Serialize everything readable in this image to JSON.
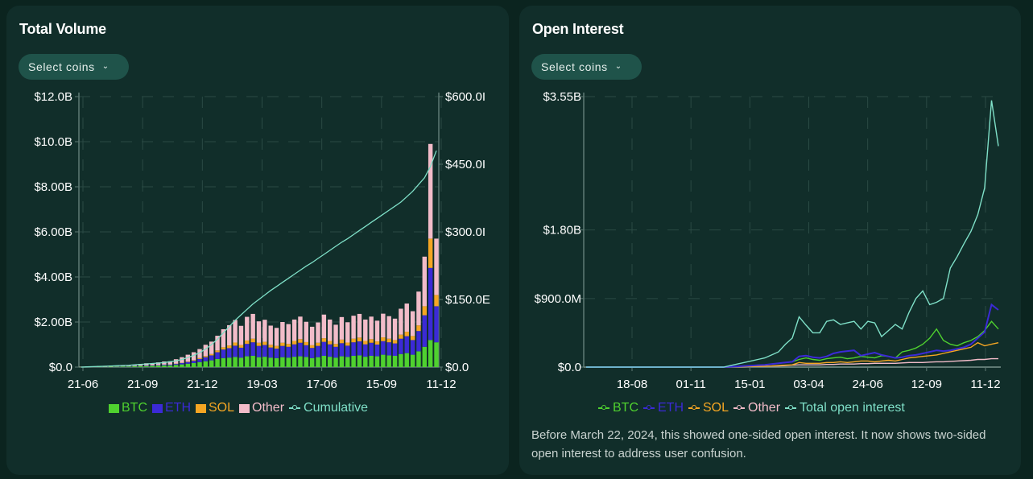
{
  "colors": {
    "btc": "#4fd12f",
    "eth": "#3b2ad6",
    "sol": "#f5a623",
    "other": "#f2bcc9",
    "cumulative": "#7fe0c8",
    "total_oi": "#7fe0c8",
    "grid": "#2a4a44",
    "axis": "#5f7a74"
  },
  "volume_panel": {
    "title": "Total Volume",
    "select_label": "Select coins",
    "select_icon": "chevron-down-icon",
    "legend": [
      {
        "key": "btc",
        "label": "BTC",
        "marker": "square"
      },
      {
        "key": "eth",
        "label": "ETH",
        "marker": "square"
      },
      {
        "key": "sol",
        "label": "SOL",
        "marker": "square"
      },
      {
        "key": "other",
        "label": "Other",
        "marker": "square"
      },
      {
        "key": "cumulative",
        "label": "Cumulative",
        "marker": "line"
      }
    ]
  },
  "oi_panel": {
    "title": "Open Interest",
    "select_label": "Select coins",
    "select_icon": "chevron-down-icon",
    "legend": [
      {
        "key": "btc",
        "label": "BTC",
        "marker": "line"
      },
      {
        "key": "eth",
        "label": "ETH",
        "marker": "line"
      },
      {
        "key": "sol",
        "label": "SOL",
        "marker": "line"
      },
      {
        "key": "other",
        "label": "Other",
        "marker": "line"
      },
      {
        "key": "total_oi",
        "label": "Total open interest",
        "marker": "line"
      }
    ],
    "note": "Before March 22, 2024, this showed one-sided open interest. It now shows two-sided open interest to address user confusion."
  },
  "chart_data": [
    {
      "type": "bar",
      "stacked": true,
      "title": "Total Volume",
      "x_tick_labels": [
        "21-06",
        "21-09",
        "21-12",
        "19-03",
        "17-06",
        "15-09",
        "11-12"
      ],
      "y_left_tick_labels": [
        "$0.0",
        "$2.00B",
        "$4.00B",
        "$6.00B",
        "$8.00B",
        "$10.0B",
        "$12.0B"
      ],
      "y_left_ticks": [
        0,
        2,
        4,
        6,
        8,
        10,
        12
      ],
      "ylim_left": [
        0,
        12
      ],
      "y_left_unit": "billions USD (daily volume)",
      "y_right_tick_labels": [
        "$0.0",
        "$150.0E",
        "$300.0I",
        "$450.0I",
        "$600.0I"
      ],
      "y_right_ticks": [
        0,
        150,
        300,
        450,
        600
      ],
      "ylim_right": [
        0,
        600
      ],
      "y_right_unit": "billions USD (cumulative)",
      "grid": true,
      "legend_position": "bottom",
      "x_index_range": [
        0,
        60
      ],
      "series": [
        {
          "name": "BTC",
          "key": "btc",
          "values": [
            0.01,
            0.01,
            0.01,
            0.02,
            0.01,
            0.02,
            0.02,
            0.03,
            0.03,
            0.04,
            0.05,
            0.05,
            0.06,
            0.07,
            0.08,
            0.08,
            0.1,
            0.12,
            0.15,
            0.18,
            0.22,
            0.26,
            0.3,
            0.36,
            0.4,
            0.42,
            0.45,
            0.42,
            0.48,
            0.5,
            0.44,
            0.46,
            0.42,
            0.4,
            0.44,
            0.42,
            0.46,
            0.48,
            0.45,
            0.4,
            0.44,
            0.5,
            0.46,
            0.42,
            0.48,
            0.45,
            0.5,
            0.52,
            0.46,
            0.5,
            0.48,
            0.55,
            0.52,
            0.5,
            0.58,
            0.62,
            0.55,
            0.7,
            0.9,
            1.2,
            1.1
          ]
        },
        {
          "name": "ETH",
          "key": "eth",
          "values": [
            0.0,
            0.0,
            0.0,
            0.0,
            0.0,
            0.0,
            0.01,
            0.01,
            0.01,
            0.01,
            0.01,
            0.02,
            0.02,
            0.02,
            0.03,
            0.03,
            0.04,
            0.06,
            0.08,
            0.1,
            0.14,
            0.18,
            0.22,
            0.3,
            0.38,
            0.42,
            0.5,
            0.44,
            0.55,
            0.6,
            0.5,
            0.52,
            0.45,
            0.42,
            0.5,
            0.48,
            0.55,
            0.6,
            0.52,
            0.45,
            0.5,
            0.62,
            0.55,
            0.48,
            0.58,
            0.5,
            0.6,
            0.62,
            0.55,
            0.58,
            0.52,
            0.6,
            0.58,
            0.55,
            0.68,
            0.75,
            0.65,
            0.9,
            1.4,
            3.2,
            1.6
          ]
        },
        {
          "name": "SOL",
          "key": "sol",
          "values": [
            0.0,
            0.0,
            0.0,
            0.0,
            0.0,
            0.0,
            0.0,
            0.0,
            0.0,
            0.0,
            0.0,
            0.0,
            0.0,
            0.0,
            0.0,
            0.0,
            0.01,
            0.01,
            0.02,
            0.03,
            0.04,
            0.05,
            0.06,
            0.08,
            0.1,
            0.12,
            0.14,
            0.12,
            0.15,
            0.16,
            0.14,
            0.14,
            0.12,
            0.12,
            0.14,
            0.13,
            0.15,
            0.16,
            0.14,
            0.12,
            0.14,
            0.16,
            0.15,
            0.13,
            0.16,
            0.14,
            0.16,
            0.17,
            0.15,
            0.16,
            0.14,
            0.17,
            0.16,
            0.15,
            0.18,
            0.2,
            0.18,
            0.25,
            0.4,
            1.3,
            0.5
          ]
        },
        {
          "name": "Other",
          "key": "other",
          "values": [
            0.01,
            0.02,
            0.02,
            0.03,
            0.02,
            0.05,
            0.04,
            0.05,
            0.04,
            0.06,
            0.08,
            0.1,
            0.08,
            0.12,
            0.14,
            0.15,
            0.2,
            0.25,
            0.3,
            0.35,
            0.4,
            0.5,
            0.55,
            0.65,
            0.8,
            0.9,
            1.0,
            0.85,
            1.05,
            1.1,
            0.95,
            0.98,
            0.85,
            0.8,
            0.92,
            0.88,
            0.95,
            1.0,
            0.9,
            0.82,
            0.9,
            1.05,
            0.95,
            0.85,
            1.0,
            0.9,
            1.02,
            1.05,
            0.95,
            1.0,
            0.92,
            1.05,
            1.0,
            0.95,
            1.15,
            1.25,
            1.1,
            1.5,
            2.2,
            4.2,
            2.5
          ]
        },
        {
          "name": "Cumulative",
          "key": "cumulative",
          "axis": "right",
          "type": "line",
          "values": [
            0,
            0.5,
            1,
            1.5,
            2,
            2.5,
            3,
            3.5,
            4,
            5,
            6,
            7,
            8,
            9,
            10,
            12,
            14,
            17,
            21,
            26,
            32,
            40,
            50,
            62,
            76,
            90,
            104,
            116,
            128,
            140,
            150,
            160,
            170,
            179,
            188,
            197,
            206,
            215,
            224,
            232,
            241,
            250,
            259,
            268,
            277,
            285,
            294,
            303,
            312,
            321,
            330,
            339,
            348,
            357,
            366,
            378,
            390,
            405,
            420,
            445,
            480
          ]
        }
      ]
    },
    {
      "type": "line",
      "title": "Open Interest",
      "x_tick_labels": [
        "18-08",
        "01-11",
        "15-01",
        "03-04",
        "24-06",
        "12-09",
        "11-12"
      ],
      "y_tick_labels": [
        "$0.0",
        "$900.0M",
        "$1.80B",
        "$3.55B"
      ],
      "y_ticks": [
        0,
        0.9,
        1.8,
        3.55
      ],
      "ylim": [
        0,
        3.55
      ],
      "y_unit": "billions USD",
      "grid": true,
      "legend_position": "bottom",
      "x_index_range": [
        0,
        60
      ],
      "series": [
        {
          "name": "BTC",
          "key": "btc",
          "values": [
            0,
            0,
            0,
            0,
            0,
            0,
            0,
            0,
            0,
            0,
            0,
            0,
            0,
            0,
            0,
            0,
            0,
            0,
            0,
            0,
            0,
            0.005,
            0.01,
            0.015,
            0.02,
            0.025,
            0.03,
            0.04,
            0.05,
            0.06,
            0.07,
            0.1,
            0.12,
            0.1,
            0.09,
            0.11,
            0.12,
            0.13,
            0.11,
            0.12,
            0.14,
            0.13,
            0.12,
            0.15,
            0.14,
            0.12,
            0.2,
            0.22,
            0.25,
            0.3,
            0.38,
            0.5,
            0.35,
            0.3,
            0.28,
            0.32,
            0.35,
            0.4,
            0.48,
            0.6,
            0.5
          ]
        },
        {
          "name": "ETH",
          "key": "eth",
          "values": [
            0,
            0,
            0,
            0,
            0,
            0,
            0,
            0,
            0,
            0,
            0,
            0,
            0,
            0,
            0,
            0,
            0,
            0,
            0,
            0,
            0,
            0.005,
            0.01,
            0.015,
            0.02,
            0.025,
            0.03,
            0.04,
            0.05,
            0.06,
            0.07,
            0.14,
            0.15,
            0.13,
            0.12,
            0.14,
            0.18,
            0.2,
            0.21,
            0.22,
            0.15,
            0.17,
            0.19,
            0.16,
            0.14,
            0.12,
            0.13,
            0.15,
            0.16,
            0.18,
            0.2,
            0.22,
            0.21,
            0.22,
            0.24,
            0.26,
            0.3,
            0.38,
            0.46,
            0.82,
            0.75
          ]
        },
        {
          "name": "SOL",
          "key": "sol",
          "values": [
            0,
            0,
            0,
            0,
            0,
            0,
            0,
            0,
            0,
            0,
            0,
            0,
            0,
            0,
            0,
            0,
            0,
            0,
            0,
            0,
            0,
            0.002,
            0.004,
            0.006,
            0.008,
            0.01,
            0.012,
            0.015,
            0.02,
            0.025,
            0.03,
            0.06,
            0.05,
            0.05,
            0.05,
            0.06,
            0.06,
            0.07,
            0.06,
            0.07,
            0.08,
            0.08,
            0.07,
            0.08,
            0.09,
            0.08,
            0.1,
            0.12,
            0.13,
            0.14,
            0.15,
            0.16,
            0.18,
            0.2,
            0.22,
            0.24,
            0.26,
            0.32,
            0.28,
            0.3,
            0.32
          ]
        },
        {
          "name": "Other",
          "key": "other",
          "values": [
            0,
            0,
            0,
            0,
            0,
            0,
            0,
            0,
            0,
            0,
            0,
            0,
            0,
            0,
            0,
            0,
            0,
            0,
            0,
            0,
            0,
            0.002,
            0.004,
            0.006,
            0.008,
            0.01,
            0.012,
            0.014,
            0.016,
            0.02,
            0.025,
            0.03,
            0.03,
            0.03,
            0.03,
            0.035,
            0.035,
            0.04,
            0.04,
            0.04,
            0.045,
            0.045,
            0.05,
            0.05,
            0.05,
            0.05,
            0.055,
            0.06,
            0.06,
            0.06,
            0.065,
            0.07,
            0.07,
            0.075,
            0.08,
            0.085,
            0.09,
            0.1,
            0.1,
            0.11,
            0.11
          ]
        },
        {
          "name": "Total open interest",
          "key": "total_oi",
          "values": [
            0,
            0,
            0,
            0,
            0,
            0,
            0,
            0,
            0,
            0,
            0,
            0,
            0,
            0,
            0,
            0,
            0,
            0,
            0,
            0,
            0,
            0.02,
            0.04,
            0.06,
            0.08,
            0.1,
            0.12,
            0.16,
            0.2,
            0.3,
            0.38,
            0.66,
            0.55,
            0.45,
            0.45,
            0.6,
            0.62,
            0.56,
            0.58,
            0.6,
            0.5,
            0.6,
            0.58,
            0.4,
            0.48,
            0.56,
            0.5,
            0.72,
            0.9,
            1.0,
            0.82,
            0.85,
            0.9,
            1.3,
            1.45,
            1.62,
            1.78,
            2.0,
            2.35,
            3.5,
            2.9
          ]
        }
      ]
    }
  ]
}
